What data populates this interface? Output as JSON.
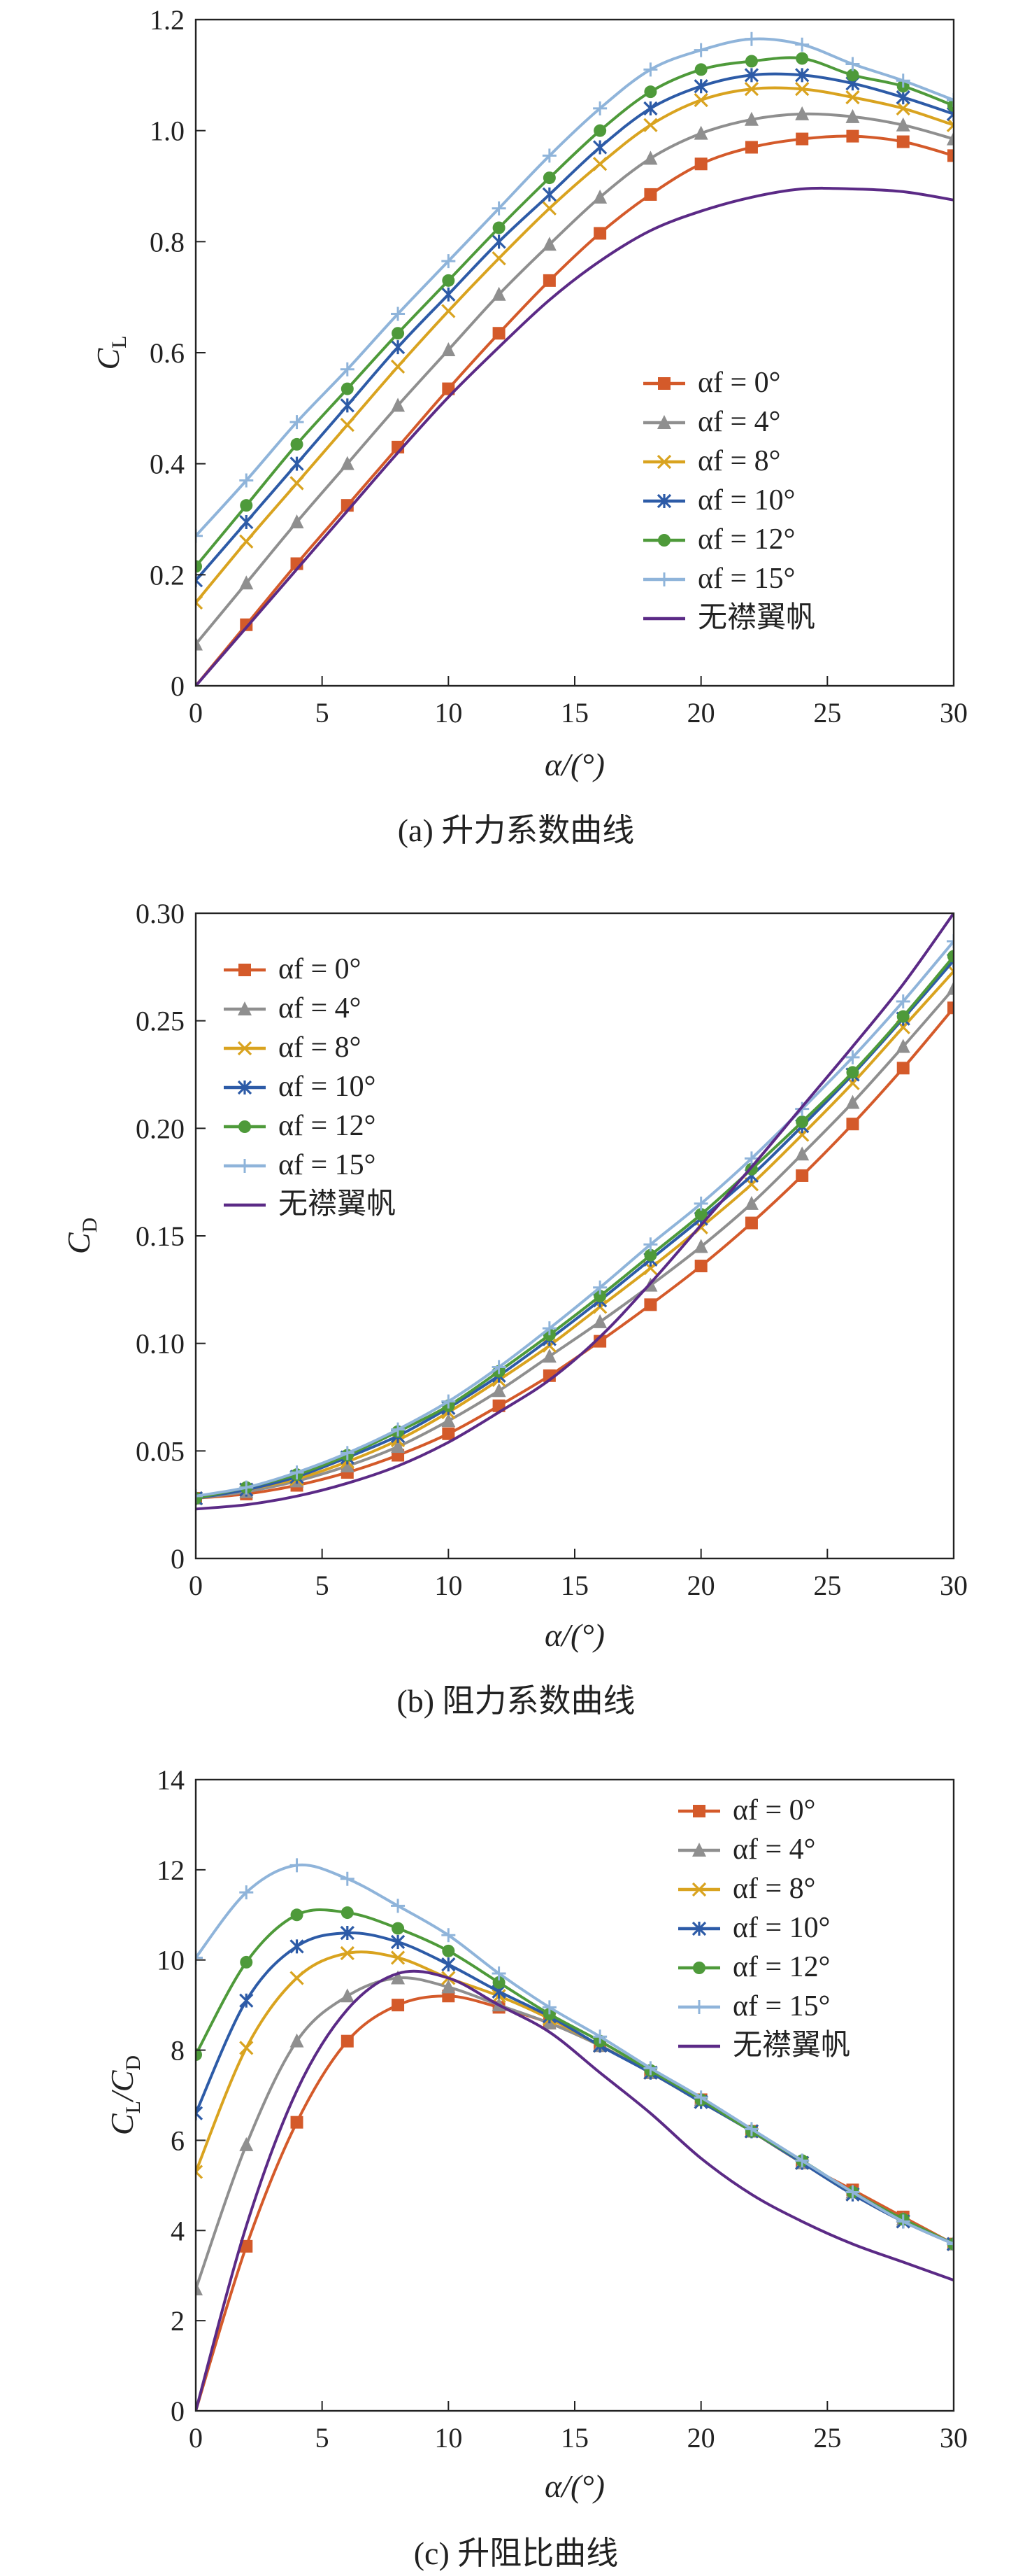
{
  "colors": {
    "f0": "#D45A2A",
    "f4": "#8F8F8F",
    "f8": "#D9A31F",
    "f10": "#2D5BA7",
    "f12": "#4E9A3A",
    "f15": "#8FB4DA",
    "none": "#5B2A86"
  },
  "chart_data": [
    {
      "type": "line",
      "caption": "(a) 升力系数曲线",
      "xlabel": "α/(°)",
      "ylabel": "CL",
      "ylabel_main": "C",
      "ylabel_sub": "L",
      "xlim": [
        0,
        30
      ],
      "ylim": [
        0,
        1.2
      ],
      "xticks": [
        0,
        5,
        10,
        15,
        20,
        25,
        30
      ],
      "yticks": [
        0,
        0.2,
        0.4,
        0.6,
        0.8,
        1.0,
        1.2
      ],
      "ytick_labels": [
        "0",
        "0.2",
        "0.4",
        "0.6",
        "0.8",
        "1.0",
        "1.2"
      ],
      "legend_position": "lower-right",
      "x": [
        0,
        2,
        4,
        6,
        8,
        10,
        12,
        14,
        16,
        18,
        20,
        22,
        24,
        26,
        28,
        30
      ],
      "series": [
        {
          "name": "αf = 0°",
          "marker": "square",
          "color_key": "f0",
          "values": [
            0.0,
            0.11,
            0.22,
            0.325,
            0.43,
            0.535,
            0.635,
            0.73,
            0.815,
            0.885,
            0.94,
            0.97,
            0.985,
            0.99,
            0.98,
            0.955
          ]
        },
        {
          "name": "αf = 4°",
          "marker": "triangle",
          "color_key": "f4",
          "values": [
            0.075,
            0.185,
            0.295,
            0.4,
            0.505,
            0.605,
            0.705,
            0.795,
            0.88,
            0.95,
            0.995,
            1.02,
            1.03,
            1.025,
            1.01,
            0.985
          ]
        },
        {
          "name": "αf = 8°",
          "marker": "x",
          "color_key": "f8",
          "values": [
            0.15,
            0.26,
            0.365,
            0.47,
            0.575,
            0.675,
            0.77,
            0.86,
            0.94,
            1.01,
            1.055,
            1.075,
            1.075,
            1.06,
            1.04,
            1.01
          ]
        },
        {
          "name": "αf = 10°",
          "marker": "star",
          "color_key": "f10",
          "values": [
            0.19,
            0.295,
            0.4,
            0.505,
            0.61,
            0.705,
            0.8,
            0.885,
            0.97,
            1.04,
            1.08,
            1.1,
            1.1,
            1.085,
            1.06,
            1.03
          ]
        },
        {
          "name": "αf = 12°",
          "marker": "circle",
          "color_key": "f12",
          "values": [
            0.215,
            0.325,
            0.435,
            0.535,
            0.635,
            0.73,
            0.825,
            0.915,
            1.0,
            1.07,
            1.11,
            1.125,
            1.13,
            1.1,
            1.08,
            1.045
          ]
        },
        {
          "name": "αf = 15°",
          "marker": "plus",
          "color_key": "f15",
          "values": [
            0.27,
            0.37,
            0.475,
            0.57,
            0.67,
            0.765,
            0.86,
            0.955,
            1.04,
            1.11,
            1.145,
            1.165,
            1.155,
            1.12,
            1.09,
            1.055
          ]
        },
        {
          "name": "无襟翼帆",
          "marker": "none",
          "color_key": "none",
          "x": [
            0,
            2,
            4,
            6,
            8,
            10,
            12,
            14,
            16,
            18,
            20,
            22,
            24,
            26,
            28,
            30
          ],
          "values": [
            0.0,
            0.105,
            0.21,
            0.315,
            0.42,
            0.52,
            0.61,
            0.695,
            0.765,
            0.82,
            0.855,
            0.88,
            0.895,
            0.895,
            0.89,
            0.875
          ]
        }
      ]
    },
    {
      "type": "line",
      "caption": "(b) 阻力系数曲线",
      "xlabel": "α/(°)",
      "ylabel": "CD",
      "ylabel_main": "C",
      "ylabel_sub": "D",
      "xlim": [
        0,
        30
      ],
      "ylim": [
        0,
        0.3
      ],
      "xticks": [
        0,
        5,
        10,
        15,
        20,
        25,
        30
      ],
      "yticks": [
        0,
        0.05,
        0.1,
        0.15,
        0.2,
        0.25,
        0.3
      ],
      "ytick_labels": [
        "0",
        "0.05",
        "0.10",
        "0.15",
        "0.20",
        "0.25",
        "0.30"
      ],
      "legend_position": "upper-left",
      "x": [
        0,
        2,
        4,
        6,
        8,
        10,
        12,
        14,
        16,
        18,
        20,
        22,
        24,
        26,
        28,
        30
      ],
      "series": [
        {
          "name": "αf = 0°",
          "marker": "square",
          "color_key": "f0",
          "values": [
            0.028,
            0.03,
            0.034,
            0.04,
            0.048,
            0.058,
            0.071,
            0.085,
            0.101,
            0.118,
            0.136,
            0.156,
            0.178,
            0.202,
            0.228,
            0.256
          ]
        },
        {
          "name": "αf = 4°",
          "marker": "triangle",
          "color_key": "f4",
          "values": [
            0.028,
            0.031,
            0.036,
            0.043,
            0.052,
            0.064,
            0.078,
            0.094,
            0.11,
            0.127,
            0.145,
            0.165,
            0.188,
            0.212,
            0.238,
            0.265
          ]
        },
        {
          "name": "αf = 8°",
          "marker": "x",
          "color_key": "f8",
          "values": [
            0.028,
            0.032,
            0.037,
            0.045,
            0.055,
            0.068,
            0.083,
            0.099,
            0.117,
            0.135,
            0.154,
            0.174,
            0.197,
            0.221,
            0.247,
            0.273
          ]
        },
        {
          "name": "αf = 10°",
          "marker": "star",
          "color_key": "f10",
          "values": [
            0.028,
            0.032,
            0.038,
            0.047,
            0.057,
            0.07,
            0.085,
            0.102,
            0.12,
            0.139,
            0.158,
            0.178,
            0.201,
            0.225,
            0.251,
            0.278
          ]
        },
        {
          "name": "αf = 12°",
          "marker": "circle",
          "color_key": "f12",
          "values": [
            0.028,
            0.033,
            0.039,
            0.048,
            0.059,
            0.071,
            0.087,
            0.104,
            0.122,
            0.141,
            0.16,
            0.181,
            0.203,
            0.226,
            0.252,
            0.28
          ]
        },
        {
          "name": "αf = 15°",
          "marker": "plus",
          "color_key": "f15",
          "values": [
            0.029,
            0.033,
            0.04,
            0.049,
            0.06,
            0.073,
            0.089,
            0.107,
            0.126,
            0.146,
            0.165,
            0.186,
            0.209,
            0.233,
            0.259,
            0.287
          ]
        },
        {
          "name": "无襟翼帆",
          "marker": "none",
          "color_key": "none",
          "x": [
            0,
            2,
            4,
            6,
            8,
            10,
            12,
            14,
            16,
            18,
            20,
            22,
            24,
            26,
            28,
            30
          ],
          "values": [
            0.023,
            0.025,
            0.029,
            0.035,
            0.043,
            0.054,
            0.068,
            0.083,
            0.103,
            0.128,
            0.155,
            0.182,
            0.21,
            0.238,
            0.267,
            0.3
          ]
        }
      ]
    },
    {
      "type": "line",
      "caption": "(c) 升阻比曲线",
      "xlabel": "α/(°)",
      "ylabel": "CL/CD",
      "ylabel_main": "C",
      "ylabel_sub": "L",
      "ylabel_main2": "/C",
      "ylabel_sub2": "D",
      "xlim": [
        0,
        30
      ],
      "ylim": [
        0,
        14
      ],
      "xticks": [
        0,
        5,
        10,
        15,
        20,
        25,
        30
      ],
      "yticks": [
        0,
        2,
        4,
        6,
        8,
        10,
        12,
        14
      ],
      "ytick_labels": [
        "0",
        "2",
        "4",
        "6",
        "8",
        "10",
        "12",
        "14"
      ],
      "legend_position": "upper-right",
      "x": [
        0,
        2,
        4,
        6,
        8,
        10,
        12,
        14,
        16,
        18,
        20,
        22,
        24,
        26,
        28,
        30
      ],
      "series": [
        {
          "name": "αf = 0°",
          "marker": "square",
          "color_key": "f0",
          "values": [
            0.0,
            3.65,
            6.4,
            8.2,
            9.0,
            9.2,
            8.95,
            8.6,
            8.1,
            7.5,
            6.9,
            6.2,
            5.5,
            4.9,
            4.3,
            3.7
          ]
        },
        {
          "name": "αf = 4°",
          "marker": "triangle",
          "color_key": "f4",
          "values": [
            2.7,
            5.9,
            8.2,
            9.2,
            9.6,
            9.4,
            9.0,
            8.6,
            8.1,
            7.5,
            6.9,
            6.2,
            5.5,
            4.85,
            4.25,
            3.7
          ]
        },
        {
          "name": "αf = 8°",
          "marker": "x",
          "color_key": "f8",
          "values": [
            5.3,
            8.05,
            9.6,
            10.15,
            10.05,
            9.6,
            9.2,
            8.7,
            8.1,
            7.5,
            6.85,
            6.2,
            5.5,
            4.8,
            4.2,
            3.7
          ]
        },
        {
          "name": "αf = 10°",
          "marker": "star",
          "color_key": "f10",
          "values": [
            6.6,
            9.1,
            10.3,
            10.6,
            10.4,
            9.9,
            9.3,
            8.75,
            8.1,
            7.5,
            6.85,
            6.2,
            5.5,
            4.8,
            4.2,
            3.7
          ]
        },
        {
          "name": "αf = 12°",
          "marker": "circle",
          "color_key": "f12",
          "values": [
            7.9,
            9.95,
            11.0,
            11.05,
            10.7,
            10.2,
            9.5,
            8.8,
            8.2,
            7.55,
            6.9,
            6.2,
            5.55,
            4.85,
            4.25,
            3.7
          ]
        },
        {
          "name": "αf = 15°",
          "marker": "plus",
          "color_key": "f15",
          "values": [
            10.05,
            11.5,
            12.1,
            11.8,
            11.2,
            10.55,
            9.7,
            8.95,
            8.3,
            7.6,
            6.95,
            6.25,
            5.55,
            4.85,
            4.2,
            3.7
          ]
        },
        {
          "name": "无襟翼帆",
          "marker": "none",
          "color_key": "none",
          "x": [
            0,
            2,
            4,
            6,
            8,
            10,
            12,
            14,
            16,
            18,
            20,
            22,
            24,
            26,
            28,
            30
          ],
          "values": [
            0.0,
            4.1,
            7.1,
            8.9,
            9.7,
            9.6,
            9.0,
            8.4,
            7.5,
            6.6,
            5.6,
            4.8,
            4.2,
            3.7,
            3.3,
            2.9
          ]
        }
      ]
    }
  ]
}
